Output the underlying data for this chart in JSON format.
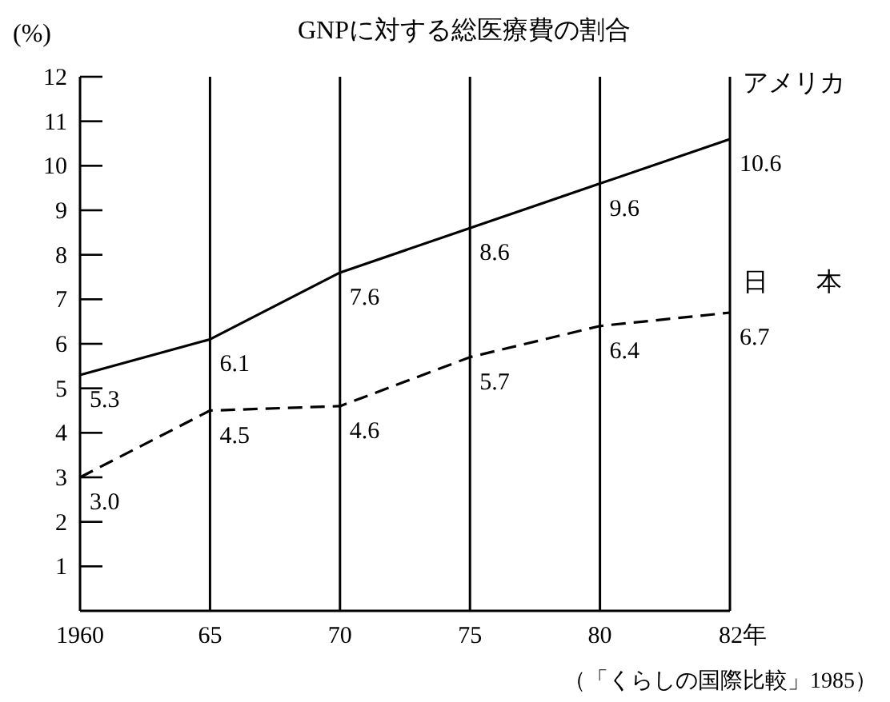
{
  "chart_data": {
    "type": "line",
    "title": "GNPに対する総医療費の割合",
    "ylabel": "(%)",
    "categories": [
      "1960",
      "65",
      "70",
      "75",
      "80",
      "82年"
    ],
    "series": [
      {
        "name": "アメリカ",
        "color": "#000000",
        "line_style": "solid",
        "values": [
          5.3,
          6.1,
          7.6,
          8.6,
          9.6,
          10.6
        ],
        "value_labels": [
          "5.3",
          "6.1",
          "7.6",
          "8.6",
          "9.6",
          "10.6"
        ]
      },
      {
        "name": "日本",
        "color": "#000000",
        "line_style": "dashed",
        "values": [
          3.0,
          4.5,
          4.6,
          5.7,
          6.4,
          6.7
        ],
        "value_labels": [
          "3.0",
          "4.5",
          "4.6",
          "5.7",
          "6.4",
          "6.7"
        ]
      }
    ],
    "ylim": [
      0,
      12
    ],
    "yticks": [
      1,
      2,
      3,
      4,
      5,
      6,
      7,
      8,
      9,
      10,
      11,
      12
    ],
    "grid": "x",
    "annotations": [
      "（「くらしの国際比較」1985）"
    ]
  }
}
